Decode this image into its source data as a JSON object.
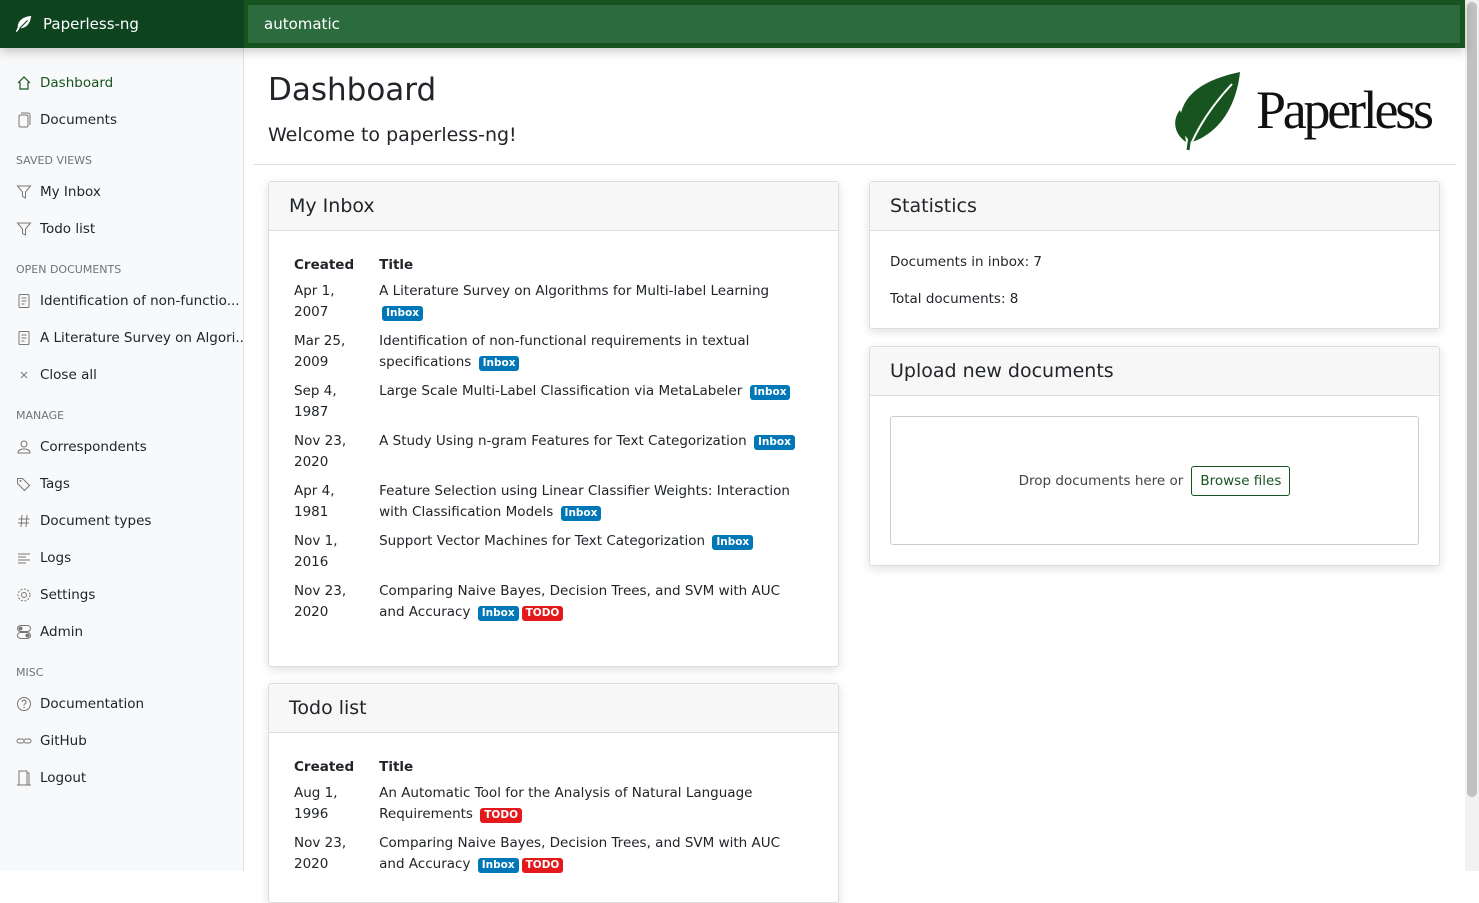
{
  "app": {
    "title": "Paperless-ng",
    "search_value": "automatic"
  },
  "sidebar": {
    "main": [
      {
        "label": "Dashboard",
        "icon": "house-icon",
        "active": true
      },
      {
        "label": "Documents",
        "icon": "files-icon"
      }
    ],
    "saved_views_heading": "SAVED VIEWS",
    "saved_views": [
      {
        "label": "My Inbox",
        "icon": "funnel-icon"
      },
      {
        "label": "Todo list",
        "icon": "funnel-icon"
      }
    ],
    "open_docs_heading": "OPEN DOCUMENTS",
    "open_docs": [
      {
        "label": "Identification of non-functio...",
        "icon": "file-text-icon"
      },
      {
        "label": "A Literature Survey on Algori...",
        "icon": "file-text-icon"
      },
      {
        "label": "Close all",
        "icon": "x-icon"
      }
    ],
    "manage_heading": "MANAGE",
    "manage": [
      {
        "label": "Correspondents",
        "icon": "person-icon"
      },
      {
        "label": "Tags",
        "icon": "tags-icon"
      },
      {
        "label": "Document types",
        "icon": "hash-icon"
      },
      {
        "label": "Logs",
        "icon": "text-left-icon"
      },
      {
        "label": "Settings",
        "icon": "gear-icon"
      },
      {
        "label": "Admin",
        "icon": "toggles-icon"
      }
    ],
    "misc_heading": "MISC",
    "misc": [
      {
        "label": "Documentation",
        "icon": "question-circle-icon"
      },
      {
        "label": "GitHub",
        "icon": "link-icon"
      },
      {
        "label": "Logout",
        "icon": "door-icon"
      }
    ]
  },
  "page": {
    "title": "Dashboard",
    "welcome": "Welcome to paperless-ng!",
    "logo_text": "Paperless"
  },
  "colors": {
    "accent": "#17541f",
    "inbox": "#0077b6",
    "todo": "#e3191c"
  },
  "inbox": {
    "title": "My Inbox",
    "col_created": "Created",
    "col_title": "Title",
    "rows": [
      {
        "created": "Apr 1, 2007",
        "title": "A Literature Survey on Algorithms for Multi-label Learning",
        "tags": [
          "Inbox"
        ]
      },
      {
        "created": "Mar 25, 2009",
        "title": "Identification of non-functional requirements in textual specifications",
        "tags": [
          "Inbox"
        ]
      },
      {
        "created": "Sep 4, 1987",
        "title": "Large Scale Multi-Label Classification via MetaLabeler",
        "tags": [
          "Inbox"
        ]
      },
      {
        "created": "Nov 23, 2020",
        "title": "A Study Using n-gram Features for Text Categorization",
        "tags": [
          "Inbox"
        ]
      },
      {
        "created": "Apr 4, 1981",
        "title": "Feature Selection using Linear Classifier Weights: Interaction with Classification Models",
        "tags": [
          "Inbox"
        ]
      },
      {
        "created": "Nov 1, 2016",
        "title": "Support Vector Machines for Text Categorization",
        "tags": [
          "Inbox"
        ]
      },
      {
        "created": "Nov 23, 2020",
        "title": "Comparing Naive Bayes, Decision Trees, and SVM with AUC and Accuracy",
        "tags": [
          "Inbox",
          "TODO"
        ]
      }
    ]
  },
  "todo": {
    "title": "Todo list",
    "col_created": "Created",
    "col_title": "Title",
    "rows": [
      {
        "created": "Aug 1, 1996",
        "title": "An Automatic Tool for the Analysis of Natural Language Requirements",
        "tags": [
          "TODO"
        ]
      },
      {
        "created": "Nov 23, 2020",
        "title": "Comparing Naive Bayes, Decision Trees, and SVM with AUC and Accuracy",
        "tags": [
          "Inbox",
          "TODO"
        ]
      }
    ]
  },
  "statistics": {
    "title": "Statistics",
    "inbox_label": "Documents in inbox: 7",
    "total_label": "Total documents: 8"
  },
  "upload": {
    "title": "Upload new documents",
    "drop_text": "Drop documents here or",
    "browse_label": "Browse files"
  }
}
